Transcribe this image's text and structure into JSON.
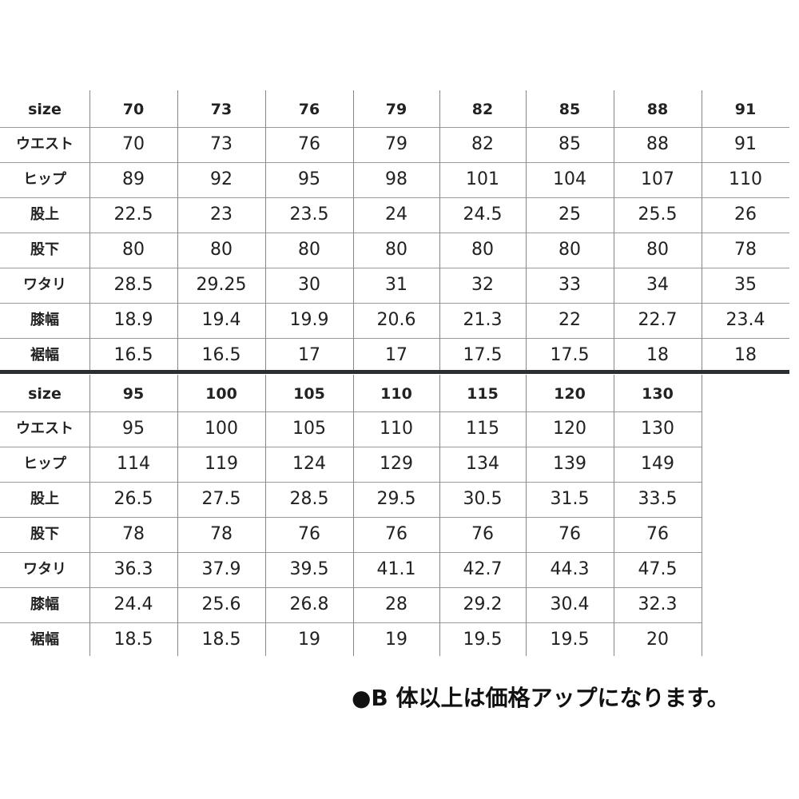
{
  "tables": [
    {
      "rows": [
        [
          "size",
          "70",
          "73",
          "76",
          "79",
          "82",
          "85",
          "88",
          "91"
        ],
        [
          "ウエスト",
          "70",
          "73",
          "76",
          "79",
          "82",
          "85",
          "88",
          "91"
        ],
        [
          "ヒップ",
          "89",
          "92",
          "95",
          "98",
          "101",
          "104",
          "107",
          "110"
        ],
        [
          "股上",
          "22.5",
          "23",
          "23.5",
          "24",
          "24.5",
          "25",
          "25.5",
          "26"
        ],
        [
          "股下",
          "80",
          "80",
          "80",
          "80",
          "80",
          "80",
          "80",
          "78"
        ],
        [
          "ワタリ",
          "28.5",
          "29.25",
          "30",
          "31",
          "32",
          "33",
          "34",
          "35"
        ],
        [
          "膝幅",
          "18.9",
          "19.4",
          "19.9",
          "20.6",
          "21.3",
          "22",
          "22.7",
          "23.4"
        ],
        [
          "裾幅",
          "16.5",
          "16.5",
          "17",
          "17",
          "17.5",
          "17.5",
          "18",
          "18"
        ]
      ]
    },
    {
      "rows": [
        [
          "size",
          "95",
          "100",
          "105",
          "110",
          "115",
          "120",
          "130"
        ],
        [
          "ウエスト",
          "95",
          "100",
          "105",
          "110",
          "115",
          "120",
          "130"
        ],
        [
          "ヒップ",
          "114",
          "119",
          "124",
          "129",
          "134",
          "139",
          "149"
        ],
        [
          "股上",
          "26.5",
          "27.5",
          "28.5",
          "29.5",
          "30.5",
          "31.5",
          "33.5"
        ],
        [
          "股下",
          "78",
          "78",
          "76",
          "76",
          "76",
          "76",
          "76"
        ],
        [
          "ワタリ",
          "36.3",
          "37.9",
          "39.5",
          "41.1",
          "42.7",
          "44.3",
          "47.5"
        ],
        [
          "膝幅",
          "24.4",
          "25.6",
          "26.8",
          "28",
          "29.2",
          "30.4",
          "32.3"
        ],
        [
          "裾幅",
          "18.5",
          "18.5",
          "19",
          "19",
          "19.5",
          "19.5",
          "20"
        ]
      ]
    }
  ],
  "note": "●B 体以上は価格アップになります。"
}
